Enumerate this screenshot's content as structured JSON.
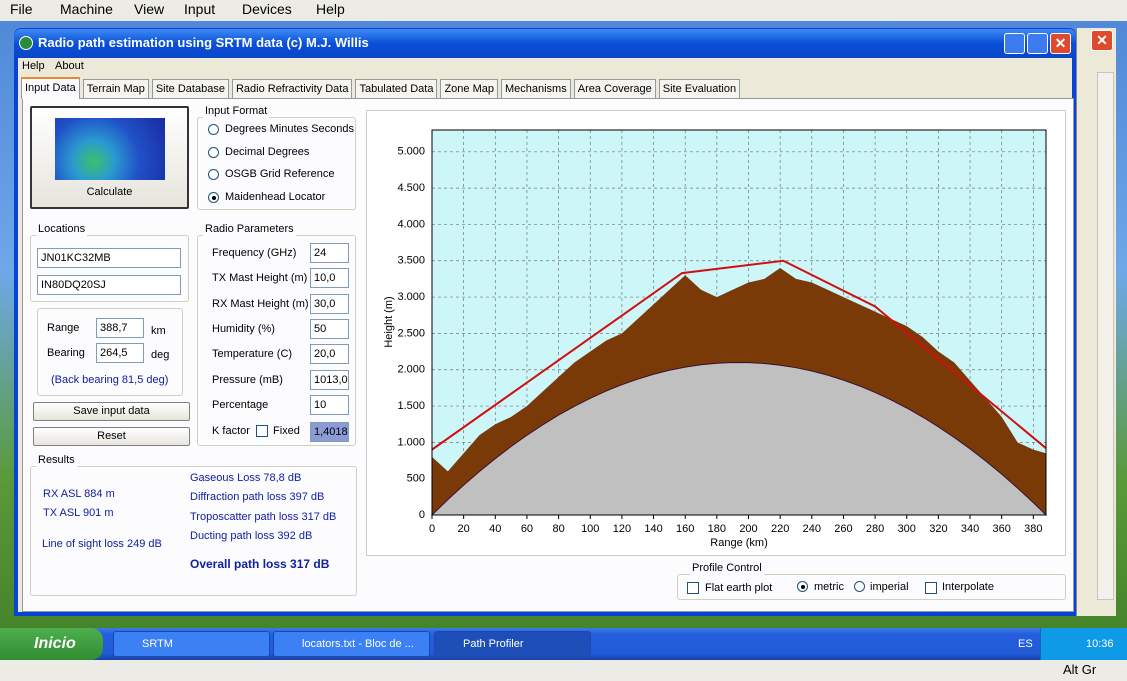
{
  "vm_menu": [
    "File",
    "Machine",
    "View",
    "Input",
    "Devices",
    "Help"
  ],
  "window": {
    "title": "Radio path estimation using SRTM data (c) M.J. Willis"
  },
  "menu": [
    "Help",
    "About"
  ],
  "tabs": [
    "Input Data",
    "Terrain Map",
    "Site Database",
    "Radio Refractivity Data",
    "Tabulated Data",
    "Zone Map",
    "Mechanisms",
    "Area Coverage",
    "Site Evaluation"
  ],
  "active_tab": 0,
  "calculate_button": "Calculate",
  "input_format": {
    "title": "Input Format",
    "options": [
      "Degrees Minutes Seconds",
      "Decimal Degrees",
      "OSGB Grid Reference",
      "Maidenhead Locator"
    ],
    "selected": 3
  },
  "locations": {
    "title": "Locations",
    "fields": [
      "JN01KC32MB",
      "IN80DQ20SJ"
    ],
    "range": {
      "label": "Range",
      "value": "388,7",
      "unit": "km"
    },
    "bearing": {
      "label": "Bearing",
      "value": "264,5",
      "unit": "deg"
    },
    "back_bearing": "(Back bearing 81,5 deg)"
  },
  "buttons": [
    "Save input data",
    "Reset"
  ],
  "radio_parameters": {
    "title": "Radio Parameters",
    "rows": [
      {
        "label": "Frequency (GHz)",
        "value": "24"
      },
      {
        "label": "TX Mast Height (m)",
        "value": "10,0"
      },
      {
        "label": "RX Mast Height (m)",
        "value": "30,0"
      },
      {
        "label": "Humidity (%)",
        "value": "50"
      },
      {
        "label": "Temperature (C)",
        "value": "20,0"
      },
      {
        "label": "Pressure (mB)",
        "value": "1013,0"
      },
      {
        "label": "Percentage",
        "value": "10"
      }
    ],
    "k_factor": {
      "label": "K factor",
      "fixed": "Fixed",
      "value": "1,4018"
    }
  },
  "results": {
    "title": "Results",
    "left": [
      "RX ASL 884 m",
      "TX ASL 901 m",
      "Line of sight loss 249 dB"
    ],
    "right": [
      "Gaseous Loss 78,8 dB",
      "Diffraction path loss 397 dB",
      "Troposcatter path loss 317 dB",
      "Ducting path loss 392 dB"
    ],
    "overall": "Overall path loss 317 dB"
  },
  "chart_data": {
    "type": "area",
    "x_label": "Range (km)",
    "y_label": "Height (m)",
    "x": [
      0,
      10,
      20,
      30,
      40,
      50,
      60,
      70,
      80,
      90,
      100,
      110,
      120,
      130,
      140,
      150,
      160,
      170,
      180,
      190,
      200,
      210,
      220,
      230,
      240,
      250,
      260,
      270,
      280,
      290,
      300,
      310,
      320,
      330,
      340,
      350,
      360,
      370,
      380,
      388
    ],
    "series": [
      {
        "name": "Terrain",
        "color": "#7a3a08",
        "values": [
          800,
          600,
          850,
          1100,
          1250,
          1350,
          1500,
          1700,
          1900,
          2100,
          2250,
          2400,
          2500,
          2700,
          2900,
          3100,
          3300,
          3100,
          3000,
          3100,
          3200,
          3250,
          3400,
          3250,
          3200,
          3100,
          3000,
          2900,
          2800,
          2700,
          2600,
          2450,
          2250,
          2100,
          1850,
          1600,
          1350,
          1000,
          900,
          850
        ]
      },
      {
        "name": "Earth curvature",
        "color": "#c0c0c0",
        "values": [
          0,
          211,
          411,
          599,
          777,
          943,
          1098,
          1242,
          1375,
          1497,
          1607,
          1706,
          1794,
          1871,
          1937,
          1992,
          2036,
          2068,
          2089,
          2099,
          2098,
          2086,
          2062,
          2028,
          1982,
          1925,
          1857,
          1778,
          1687,
          1586,
          1473,
          1349,
          1214,
          1068,
          911,
          742,
          562,
          372,
          170,
          0
        ]
      },
      {
        "name": "Path",
        "color": "#d01010",
        "kind": "line",
        "x": [
          0,
          158,
          222,
          280,
          388
        ],
        "values": [
          900,
          3330,
          3500,
          2870,
          920
        ]
      }
    ],
    "xlim": [
      0,
      388
    ],
    "ylim": [
      0,
      5300
    ],
    "xticks": [
      0,
      20,
      40,
      60,
      80,
      100,
      120,
      140,
      160,
      180,
      200,
      220,
      240,
      260,
      280,
      300,
      320,
      340,
      360,
      380
    ],
    "yticks": [
      0,
      500,
      {
        "value": 1000,
        "label": "1.000"
      },
      {
        "value": 1500,
        "label": "1.500"
      },
      {
        "value": 2000,
        "label": "2.000"
      },
      {
        "value": 2500,
        "label": "2.500"
      },
      {
        "value": 3000,
        "label": "3.000"
      },
      {
        "value": 3500,
        "label": "3.500"
      },
      {
        "value": 4000,
        "label": "4.000"
      },
      {
        "value": 4500,
        "label": "4.500"
      },
      {
        "value": 5000,
        "label": "5.000"
      }
    ],
    "grid": true,
    "background": "#ccf6f8"
  },
  "profile_control": {
    "title": "Profile Control",
    "checkboxes": [
      "Flat earth plot",
      "Interpolate"
    ],
    "units": [
      "metric",
      "imperial"
    ],
    "units_selected": 0
  },
  "taskbar": {
    "start": "Inicio",
    "items": [
      "SRTM",
      "locators.txt - Bloc de ...",
      "Path Profiler"
    ],
    "language": "ES",
    "clock": "10:36"
  },
  "status": "Alt Gr"
}
